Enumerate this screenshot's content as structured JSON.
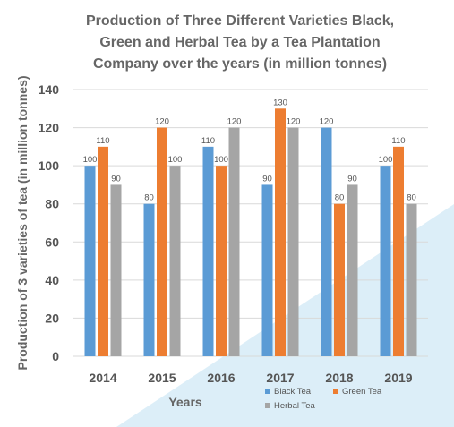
{
  "chart_data": {
    "type": "bar",
    "title_lines": [
      "Production of Three Different Varieties Black,",
      "Green and Herbal Tea by a Tea Plantation",
      "Company over the years (in million tonnes)"
    ],
    "xlabel": "Years",
    "ylabel": "Production of 3 varieties of tea (in million tonnes)",
    "categories": [
      "2014",
      "2015",
      "2016",
      "2017",
      "2018",
      "2019"
    ],
    "ylim": [
      0,
      140
    ],
    "yticks": [
      0,
      20,
      40,
      60,
      80,
      100,
      120,
      140
    ],
    "grid": true,
    "legend_position": "bottom-right",
    "series": [
      {
        "name": "Black Tea",
        "color": "#5b9bd5",
        "values": [
          100,
          80,
          110,
          90,
          120,
          100
        ]
      },
      {
        "name": "Green Tea",
        "color": "#ed7d31",
        "values": [
          110,
          120,
          100,
          130,
          80,
          110
        ]
      },
      {
        "name": "Herbal Tea",
        "color": "#a5a5a5",
        "values": [
          90,
          100,
          120,
          120,
          90,
          80
        ]
      }
    ]
  }
}
